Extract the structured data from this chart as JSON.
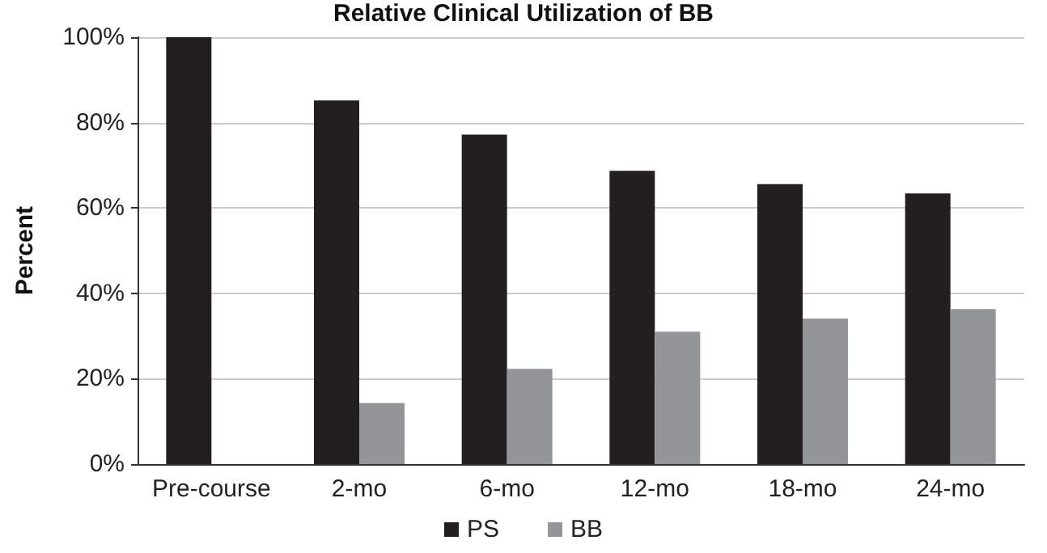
{
  "chart_data": {
    "type": "bar",
    "title": "Relative Clinical Utilization of BB",
    "ylabel": "Percent",
    "categories": [
      "Pre-course",
      "2-mo",
      "6-mo",
      "12-mo",
      "18-mo",
      "24-mo"
    ],
    "series": [
      {
        "name": "PS",
        "color": "#231f20",
        "values": [
          100,
          85.2,
          77.2,
          68.7,
          65.6,
          63.4
        ]
      },
      {
        "name": "BB",
        "color": "#939598",
        "values": [
          null,
          14.3,
          22.3,
          31.0,
          34.1,
          36.3
        ]
      }
    ],
    "ylim": [
      0,
      100
    ],
    "yticks": [
      {
        "value": 0,
        "label": "0%"
      },
      {
        "value": 20,
        "label": "20%"
      },
      {
        "value": 40,
        "label": "40%"
      },
      {
        "value": 60,
        "label": "60%"
      },
      {
        "value": 80,
        "label": "80%"
      },
      {
        "value": 100,
        "label": "100%"
      }
    ],
    "grid": "y",
    "legend": "bottom"
  }
}
